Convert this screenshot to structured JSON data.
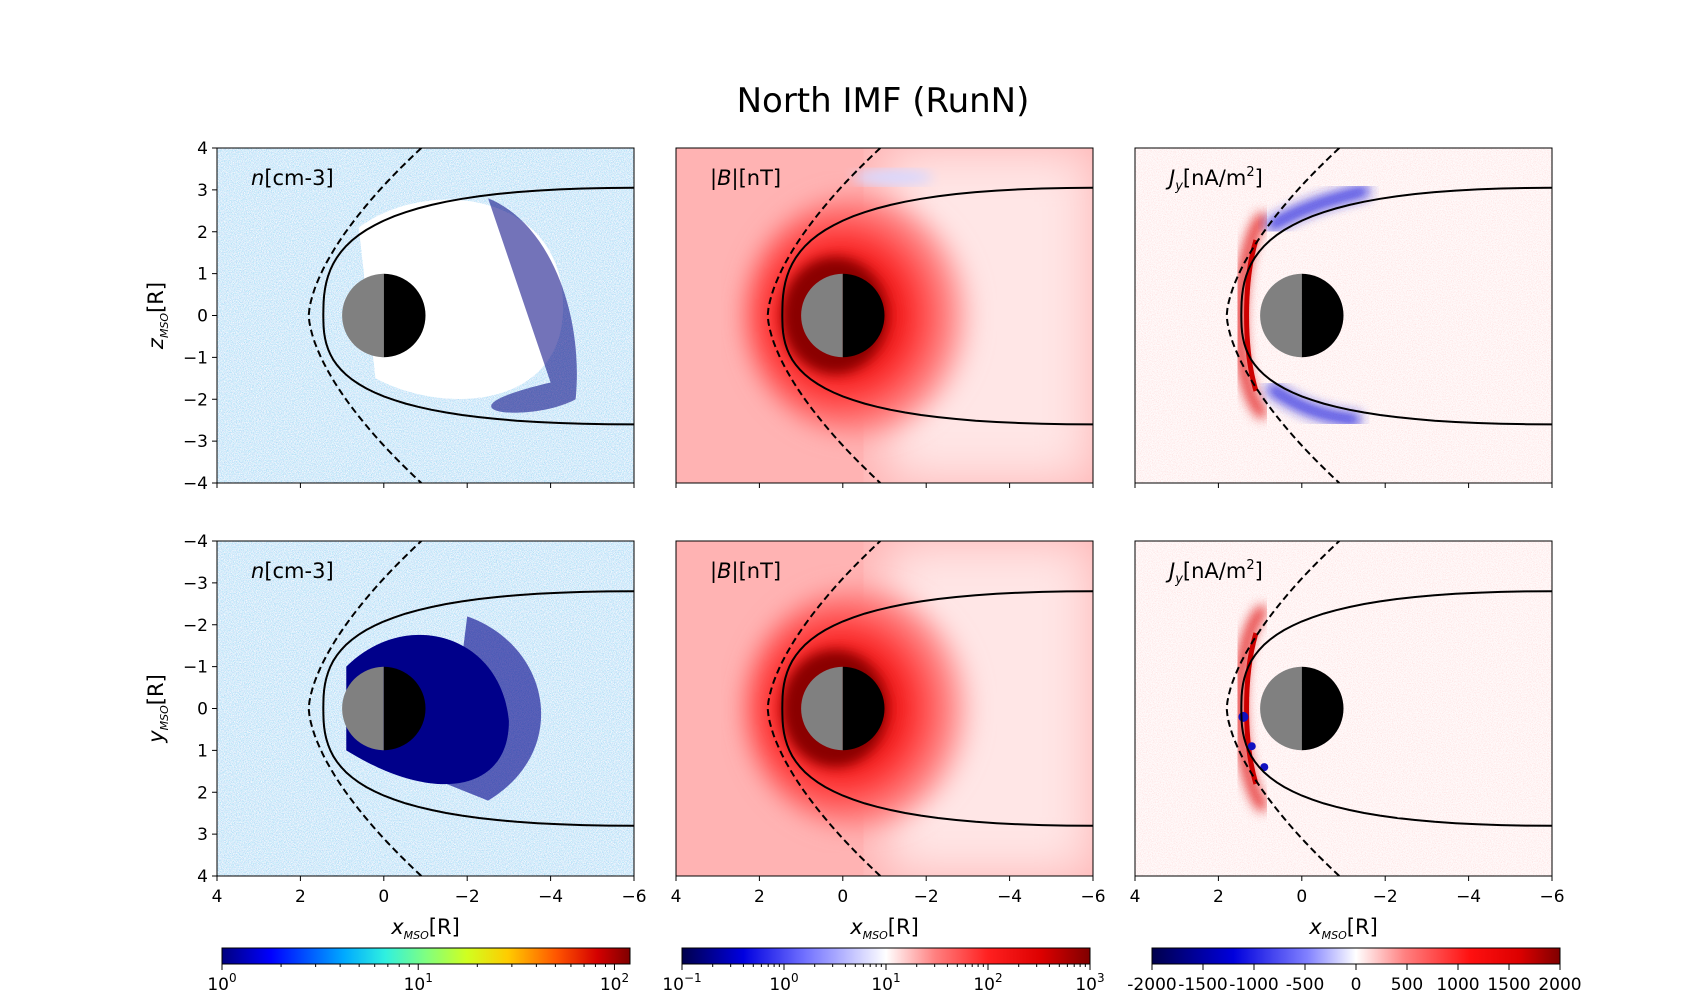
{
  "title": "North IMF (RunN)",
  "chart_data": [
    {
      "type": "heatmap",
      "row": "top",
      "variable_label_italic": "n",
      "variable_label_rest": "[cm-3]",
      "ylabel_main": "z",
      "ylabel_sub": "MSO",
      "ylabel_unit": "[R]",
      "xlim": [
        4,
        -6
      ],
      "ylim": [
        -4,
        4
      ],
      "yticks": [
        "4",
        "3",
        "2",
        "1",
        "0",
        "−1",
        "−2",
        "−3",
        "−4"
      ],
      "colormap": "jet",
      "colorscale": "log",
      "crange": [
        1,
        120
      ],
      "features": [
        "bow shock (dashed)",
        "magnetopause (solid)",
        "planet (day/night)"
      ]
    },
    {
      "type": "heatmap",
      "row": "top",
      "variable_label_italic": "|B|",
      "variable_label_rest": "[nT]",
      "xlim": [
        4,
        -6
      ],
      "ylim": [
        -4,
        4
      ],
      "colormap": "seismic",
      "colorscale": "log",
      "crange": [
        0.1,
        1000
      ]
    },
    {
      "type": "heatmap",
      "row": "top",
      "variable_label_italic": "J",
      "variable_label_sub": "y",
      "variable_label_rest": "[nA/m",
      "variable_label_sup": "2",
      "variable_label_end": "]",
      "xlim": [
        4,
        -6
      ],
      "ylim": [
        -4,
        4
      ],
      "colormap": "seismic",
      "colorscale": "linear",
      "crange": [
        -2000,
        2000
      ]
    },
    {
      "type": "heatmap",
      "row": "bottom",
      "variable_label_italic": "n",
      "variable_label_rest": "[cm-3]",
      "ylabel_main": "y",
      "ylabel_sub": "MSO",
      "ylabel_unit": "[R]",
      "xlabel_main": "x",
      "xlabel_sub": "MSO",
      "xlabel_unit": "[R]",
      "xlim": [
        4,
        -6
      ],
      "ylim": [
        4,
        -4
      ],
      "xticks": [
        "4",
        "2",
        "0",
        "−2",
        "−4",
        "−6"
      ],
      "yticks": [
        "−4",
        "−3",
        "−2",
        "−1",
        "0",
        "1",
        "2",
        "3",
        "4"
      ],
      "colormap": "jet",
      "colorscale": "log",
      "crange": [
        1,
        120
      ]
    },
    {
      "type": "heatmap",
      "row": "bottom",
      "variable_label_italic": "|B|",
      "variable_label_rest": "[nT]",
      "xlabel_main": "x",
      "xlabel_sub": "MSO",
      "xlabel_unit": "[R]",
      "xlim": [
        4,
        -6
      ],
      "ylim": [
        4,
        -4
      ],
      "xticks": [
        "4",
        "2",
        "0",
        "−2",
        "−4",
        "−6"
      ],
      "colormap": "seismic",
      "colorscale": "log",
      "crange": [
        0.1,
        1000
      ]
    },
    {
      "type": "heatmap",
      "row": "bottom",
      "variable_label_italic": "J",
      "variable_label_sub": "y",
      "variable_label_rest": "[nA/m",
      "variable_label_sup": "2",
      "variable_label_end": "]",
      "xlabel_main": "x",
      "xlabel_sub": "MSO",
      "xlabel_unit": "[R]",
      "xlim": [
        4,
        -6
      ],
      "ylim": [
        4,
        -4
      ],
      "xticks": [
        "4",
        "2",
        "0",
        "−2",
        "−4",
        "−6"
      ],
      "colormap": "seismic",
      "colorscale": "linear",
      "crange": [
        -2000,
        2000
      ]
    }
  ],
  "colorbars": [
    {
      "name": "density-colorbar",
      "scale": "log",
      "range": [
        1,
        120
      ],
      "colors": [
        "#00007f",
        "#0000ff",
        "#00aaff",
        "#2ff0e0",
        "#80ff80",
        "#d0ff20",
        "#ffcc00",
        "#ff5500",
        "#d40000",
        "#7f0000"
      ],
      "tick_labels": [
        {
          "base": "10",
          "exp": "0",
          "value": 1
        },
        {
          "base": "10",
          "exp": "1",
          "value": 10
        },
        {
          "base": "10",
          "exp": "2",
          "value": 100
        }
      ]
    },
    {
      "name": "bfield-colorbar",
      "scale": "log",
      "range": [
        0.1,
        1000
      ],
      "colors": [
        "#00004c",
        "#0000e0",
        "#7070ff",
        "#ffffff",
        "#ff8080",
        "#ff2020",
        "#dd0000",
        "#7f0000"
      ],
      "tick_labels": [
        {
          "base": "10",
          "exp": "−1",
          "value": 0.1
        },
        {
          "base": "10",
          "exp": "0",
          "value": 1
        },
        {
          "base": "10",
          "exp": "1",
          "value": 10
        },
        {
          "base": "10",
          "exp": "2",
          "value": 100
        },
        {
          "base": "10",
          "exp": "3",
          "value": 1000
        }
      ]
    },
    {
      "name": "current-colorbar",
      "scale": "linear",
      "range": [
        -2000,
        2000
      ],
      "colors": [
        "#00004c",
        "#0000dd",
        "#8080ff",
        "#ffffff",
        "#ff8080",
        "#ff1010",
        "#dd0000",
        "#7f0000"
      ],
      "tick_labels": [
        {
          "text": "-2000",
          "value": -2000
        },
        {
          "text": "-1500",
          "value": -1500
        },
        {
          "text": "-1000",
          "value": -1000
        },
        {
          "text": "-500",
          "value": -500
        },
        {
          "text": "0",
          "value": 0
        },
        {
          "text": "500",
          "value": 500
        },
        {
          "text": "1000",
          "value": 1000
        },
        {
          "text": "1500",
          "value": 1500
        },
        {
          "text": "2000",
          "value": 2000
        }
      ]
    }
  ]
}
